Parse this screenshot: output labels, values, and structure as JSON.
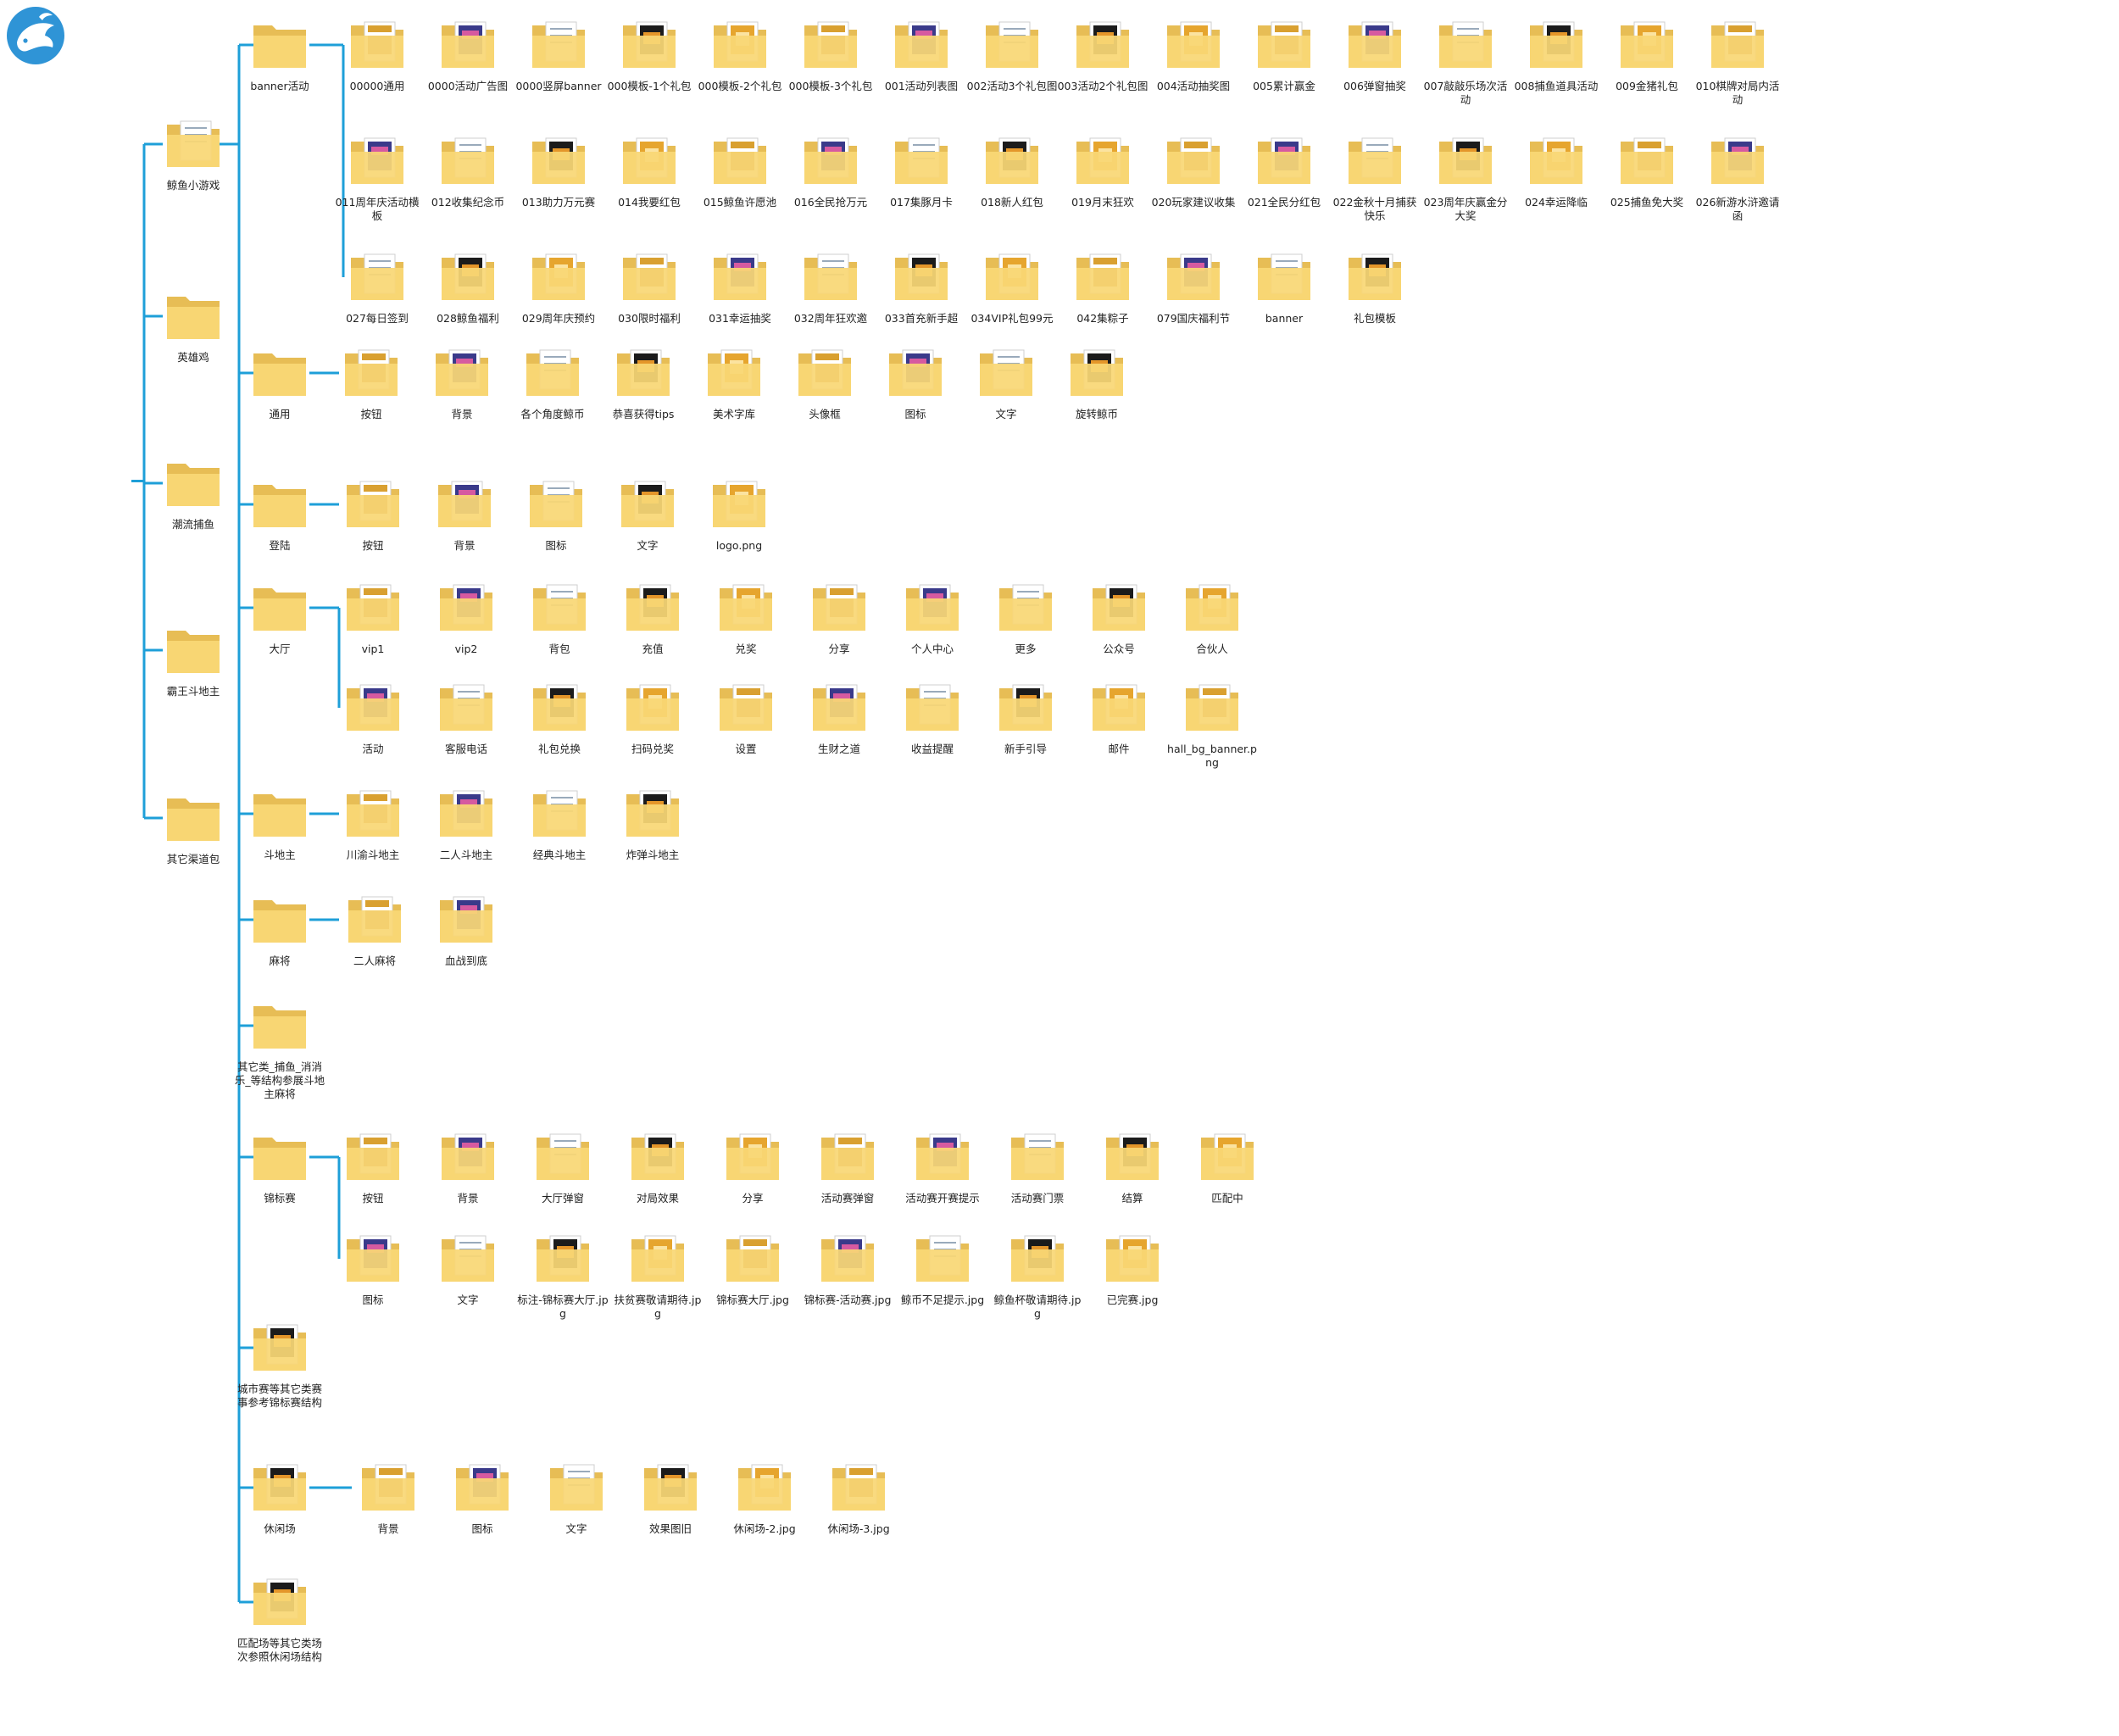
{
  "colors": {
    "connector": "#1e9fd8",
    "folder_back": "#e7bd55",
    "folder_front": "#f9d775",
    "paper": "#ffffff",
    "brand": "#2f94d6"
  },
  "brand_icon": "whale-logo-icon",
  "level1": [
    {
      "label": "鲸鱼小游戏",
      "icon": "folder-icon"
    },
    {
      "label": "英雄鸡",
      "icon": "folder-icon"
    },
    {
      "label": "潮流捕鱼",
      "icon": "folder-icon"
    },
    {
      "label": "霸王斗地主",
      "icon": "folder-icon"
    },
    {
      "label": "其它渠道包",
      "icon": "folder-icon"
    }
  ],
  "level2": [
    {
      "label": "banner活动",
      "icon": "folder-icon"
    },
    {
      "label": "通用",
      "icon": "folder-icon"
    },
    {
      "label": "登陆",
      "icon": "folder-icon"
    },
    {
      "label": "大厅",
      "icon": "folder-icon"
    },
    {
      "label": "斗地主",
      "icon": "folder-icon"
    },
    {
      "label": "麻将",
      "icon": "folder-icon"
    },
    {
      "label": "其它类_捕鱼_消消乐_等结构参展斗地主麻将",
      "icon": "folder-icon"
    },
    {
      "label": "锦标赛",
      "icon": "folder-icon"
    },
    {
      "label": "城市赛等其它类赛事参考锦标赛结构",
      "icon": "folder-icon"
    },
    {
      "label": "休闲场",
      "icon": "folder-icon"
    },
    {
      "label": "匹配场等其它类场次参照休闲场结构",
      "icon": "folder-icon"
    }
  ],
  "groups": {
    "banner": {
      "rows": [
        [
          "00000通用",
          "0000活动广告图",
          "0000竖屏banner",
          "000模板-1个礼包",
          "000模板-2个礼包",
          "000模板-3个礼包",
          "001活动列表图",
          "002活动3个礼包图",
          "003活动2个礼包图",
          "004活动抽奖图",
          "005累计赢金",
          "006弹窗抽奖",
          "007敲敲乐场次活动",
          "008捕鱼道具活动",
          "009金猪礼包",
          "010棋牌对局内活动"
        ],
        [
          "011周年庆活动横板",
          "012收集纪念币",
          "013助力万元赛",
          "014我要红包",
          "015鲸鱼许愿池",
          "016全民抢万元",
          "017集豚月卡",
          "018新人红包",
          "019月末狂欢",
          "020玩家建议收集",
          "021全民分红包",
          "022金秋十月捕获快乐",
          "023周年庆赢金分大奖",
          "024幸运降临",
          "025捕鱼免大奖",
          "026新游水浒邀请函"
        ],
        [
          "027每日签到",
          "028鲸鱼福利",
          "029周年庆预约",
          "030限时福利",
          "031幸运抽奖",
          "032周年狂欢邀",
          "033首充新手超",
          "034VIP礼包99元",
          "042集粽子",
          "079国庆福利节",
          "banner",
          "礼包模板"
        ]
      ]
    },
    "general": [
      "按钮",
      "背景",
      "各个角度鲸币",
      "恭喜获得tips",
      "美术字库",
      "头像框",
      "图标",
      "文字",
      "旋转鲸币"
    ],
    "login": [
      "按钮",
      "背景",
      "图标",
      "文字",
      "logo.png"
    ],
    "hall": {
      "rows": [
        [
          "vip1",
          "vip2",
          "背包",
          "充值",
          "兑奖",
          "分享",
          "个人中心",
          "更多",
          "公众号",
          "合伙人"
        ],
        [
          "活动",
          "客服电话",
          "礼包兑换",
          "扫码兑奖",
          "设置",
          "生财之道",
          "收益提醒",
          "新手引导",
          "邮件",
          "hall_bg_banner.png"
        ]
      ]
    },
    "ddz": [
      "川渝斗地主",
      "二人斗地主",
      "经典斗地主",
      "炸弹斗地主"
    ],
    "mahjong": [
      "二人麻将",
      "血战到底"
    ],
    "tourney": {
      "rows": [
        [
          "按钮",
          "背景",
          "大厅弹窗",
          "对局效果",
          "分享",
          "活动赛弹窗",
          "活动赛开赛提示",
          "活动赛门票",
          "结算",
          "匹配中"
        ],
        [
          "图标",
          "文字",
          "标注-锦标赛大厅.jpg",
          "扶贫赛敬请期待.jpg",
          "锦标赛大厅.jpg",
          "锦标赛-活动赛.jpg",
          "鲸币不足提示.jpg",
          "鲸鱼杯敬请期待.jpg",
          "已完赛.jpg"
        ]
      ]
    },
    "casual": [
      "背景",
      "图标",
      "文字",
      "效果图旧",
      "休闲场-2.jpg",
      "休闲场-3.jpg"
    ]
  }
}
